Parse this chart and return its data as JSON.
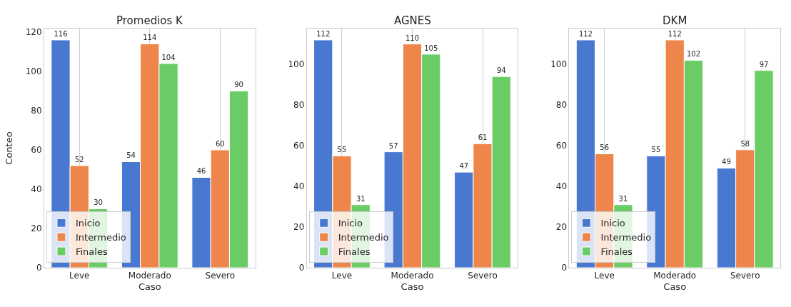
{
  "chart_data": [
    {
      "type": "bar",
      "title": "Promedios K",
      "xlabel": "Caso",
      "ylabel": "Conteo",
      "categories": [
        "Leve",
        "Moderado",
        "Severo"
      ],
      "series": [
        {
          "name": "Inicio",
          "color": "#4878d0",
          "values": [
            116,
            54,
            46
          ]
        },
        {
          "name": "Intermedio",
          "color": "#ee854a",
          "values": [
            52,
            114,
            60
          ]
        },
        {
          "name": "Finales",
          "color": "#6acc64",
          "values": [
            30,
            104,
            90
          ]
        }
      ],
      "ylim": [
        0,
        121.8
      ],
      "yticks": [
        0,
        20,
        40,
        60,
        80,
        100,
        120
      ],
      "grid": "x",
      "legend": "bottom left",
      "data_labels": true
    },
    {
      "type": "bar",
      "title": "AGNES",
      "xlabel": "Caso",
      "categories": [
        "Leve",
        "Moderado",
        "Severo"
      ],
      "series": [
        {
          "name": "Inicio",
          "color": "#4878d0",
          "values": [
            112,
            57,
            47
          ]
        },
        {
          "name": "Intermedio",
          "color": "#ee854a",
          "values": [
            55,
            110,
            61
          ]
        },
        {
          "name": "Finales",
          "color": "#6acc64",
          "values": [
            31,
            105,
            94
          ]
        }
      ],
      "ylim": [
        0,
        117.6
      ],
      "yticks": [
        0,
        20,
        40,
        60,
        80,
        100
      ],
      "grid": "x",
      "legend": "bottom left",
      "data_labels": true
    },
    {
      "type": "bar",
      "title": "DKM",
      "xlabel": "Caso",
      "categories": [
        "Leve",
        "Moderado",
        "Severo"
      ],
      "series": [
        {
          "name": "Inicio",
          "color": "#4878d0",
          "values": [
            112,
            55,
            49
          ]
        },
        {
          "name": "Intermedio",
          "color": "#ee854a",
          "values": [
            56,
            112,
            58
          ]
        },
        {
          "name": "Finales",
          "color": "#6acc64",
          "values": [
            31,
            102,
            97
          ]
        }
      ],
      "ylim": [
        0,
        117.6
      ],
      "yticks": [
        0,
        20,
        40,
        60,
        80,
        100
      ],
      "grid": "x",
      "legend": "bottom left",
      "data_labels": true
    }
  ]
}
